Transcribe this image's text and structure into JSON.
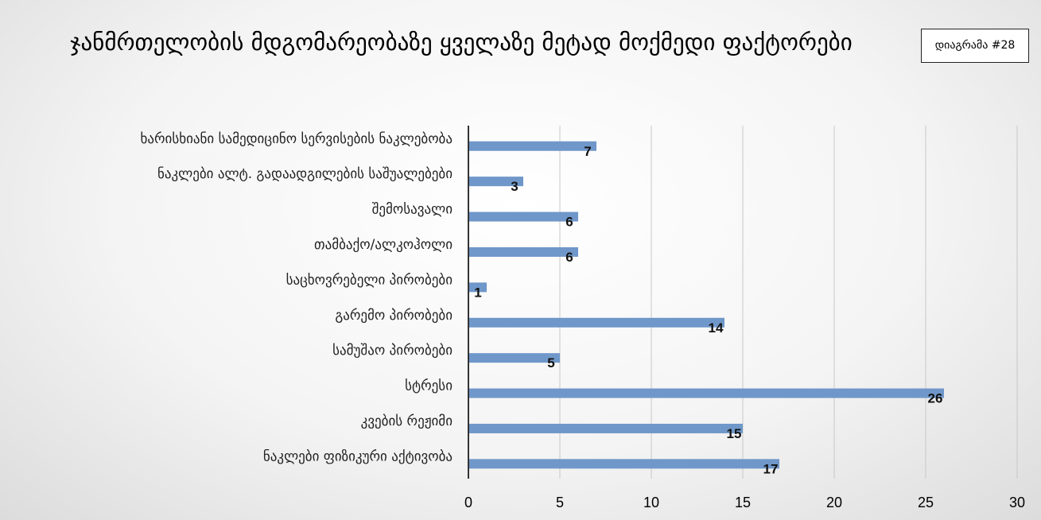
{
  "badge": "დიაგრამა #28",
  "chart_data": {
    "type": "bar",
    "orientation": "horizontal",
    "title": "ჯანმრთელობის მდგომარეობაზე ყველაზე მეტად მოქმედი ფაქტორები",
    "categories": [
      "ხარისხიანი სამედიცინო სერვისების ნაკლებობა",
      "ნაკლები ალტ. გადაადგილების საშუალებები",
      "შემოსავალი",
      "თამბაქო/ალკოჰოლი",
      "საცხოვრებელი პირობები",
      "გარემო პირობები",
      "სამუშაო პირობები",
      "სტრესი",
      "კვების რეჟიმი",
      "ნაკლები ფიზიკური აქტივობა"
    ],
    "values": [
      7,
      3,
      6,
      6,
      1,
      14,
      5,
      26,
      15,
      17
    ],
    "xlim": [
      0,
      30
    ],
    "xticks": [
      0,
      5,
      10,
      15,
      20,
      25,
      30
    ],
    "grid": "vertical",
    "legend": "none",
    "bar_color": "#6f97c9",
    "data_labels": true
  }
}
